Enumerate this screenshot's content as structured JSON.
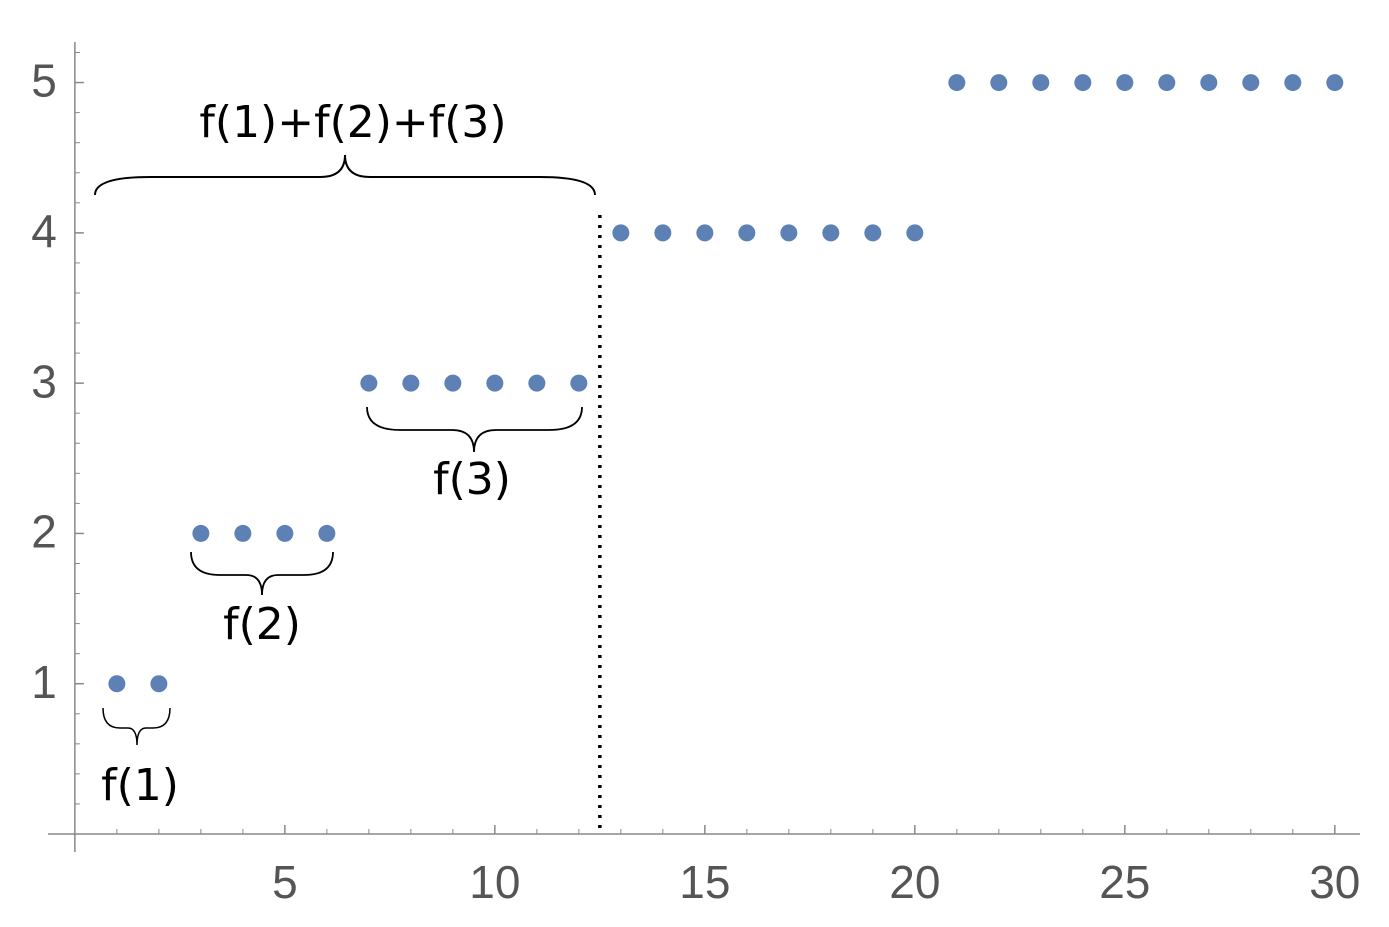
{
  "chart_data": {
    "type": "scatter",
    "x": [
      1,
      2,
      3,
      4,
      5,
      6,
      7,
      8,
      9,
      10,
      11,
      12,
      13,
      14,
      15,
      16,
      17,
      18,
      19,
      20,
      21,
      22,
      23,
      24,
      25,
      26,
      27,
      28,
      29,
      30
    ],
    "series": [
      {
        "color": "#5e81b5",
        "values": [
          1,
          1,
          2,
          2,
          2,
          2,
          3,
          3,
          3,
          3,
          3,
          3,
          4,
          4,
          4,
          4,
          4,
          4,
          4,
          4,
          5,
          5,
          5,
          5,
          5,
          5,
          5,
          5,
          5,
          5
        ]
      }
    ],
    "xlim": [
      -0.64,
      30.6
    ],
    "ylim": [
      0,
      5.27
    ],
    "xticks": [
      5,
      10,
      15,
      20,
      25,
      30
    ],
    "yticks": [
      1,
      2,
      3,
      4,
      5
    ],
    "xminorticks": [
      1,
      2,
      3,
      4,
      6,
      7,
      8,
      9,
      11,
      12,
      13,
      14,
      16,
      17,
      18,
      19,
      21,
      22,
      23,
      24,
      26,
      27,
      28,
      29
    ],
    "yminorticks": [
      0.2,
      0.4,
      0.6,
      0.8,
      1.2,
      1.4,
      1.6,
      1.8,
      2.2,
      2.4,
      2.6,
      2.8,
      3.2,
      3.4,
      3.6,
      3.8,
      4.2,
      4.4,
      4.6,
      4.8,
      5.2
    ],
    "vline": 12.5,
    "annotations": [
      "f(1)",
      "f(2)",
      "f(3)",
      "f(1)+f(2)+f(3)"
    ]
  }
}
